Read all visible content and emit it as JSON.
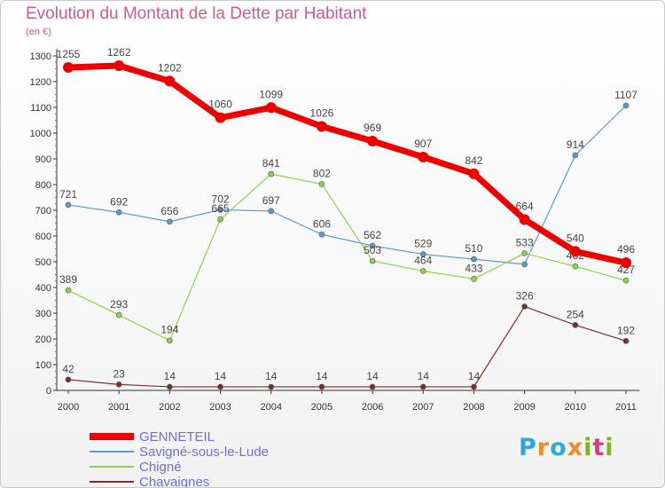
{
  "title": "Evolution du Montant de la Dette par Habitant",
  "unit": "(en €)",
  "logo": {
    "text": "Proxiti",
    "colors": [
      "#2aa8e0",
      "#f08a24",
      "#2aa8e0",
      "#f08a24",
      "#7ab81e",
      "#e03a7a",
      "#7ab81e"
    ]
  },
  "chart_data": {
    "type": "line",
    "title": "Evolution du Montant de la Dette par Habitant",
    "ylabel": "(en €)",
    "ylim": [
      0,
      1300
    ],
    "yticks": [
      0,
      100,
      200,
      300,
      400,
      500,
      600,
      700,
      800,
      900,
      1000,
      1100,
      1200,
      1300
    ],
    "categories": [
      "2000",
      "2001",
      "2002",
      "2003",
      "2004",
      "2005",
      "2006",
      "2007",
      "2008",
      "2009",
      "2010",
      "2011"
    ],
    "grid": false,
    "legend_position": "bottom-left",
    "series": [
      {
        "name": "Savigné-sous-le-Lude",
        "color": "#5b9bd5",
        "values": [
          721,
          692,
          656,
          702,
          697,
          606,
          562,
          529,
          510,
          490,
          914,
          1107
        ],
        "labels": [
          "721",
          "692",
          "656",
          "702",
          "697",
          "606",
          "562",
          "529",
          "510",
          "",
          "914",
          "1107"
        ]
      },
      {
        "name": "Chigné",
        "color": "#8fd14f",
        "values": [
          389,
          293,
          194,
          665,
          841,
          802,
          503,
          464,
          433,
          533,
          482,
          427
        ],
        "labels": [
          "389",
          "293",
          "194",
          "665",
          "841",
          "802",
          "503",
          "464",
          "433",
          "533",
          "482",
          "427"
        ]
      },
      {
        "name": "Chavaignes",
        "color": "#7b2e2e",
        "values": [
          42,
          23,
          14,
          14,
          14,
          14,
          14,
          14,
          14,
          326,
          254,
          192
        ],
        "labels": [
          "42",
          "23",
          "14",
          "14",
          "14",
          "14",
          "14",
          "14",
          "14",
          "326",
          "254",
          "192"
        ]
      },
      {
        "name": "GENNETEIL",
        "color": "#ee0000",
        "values": [
          1255,
          1262,
          1202,
          1060,
          1099,
          1026,
          969,
          907,
          842,
          664,
          540,
          496
        ],
        "labels": [
          "1255",
          "1262",
          "1202",
          "1060",
          "1099",
          "1026",
          "969",
          "907",
          "842",
          "664",
          "540",
          "496"
        ]
      }
    ]
  },
  "legend": [
    {
      "name": "GENNETEIL",
      "color": "#ee0000",
      "thick": true
    },
    {
      "name": "Savigné-sous-le-Lude",
      "color": "#5b9bd5",
      "thick": false
    },
    {
      "name": "Chigné",
      "color": "#8fd14f",
      "thick": false
    },
    {
      "name": "Chavaignes",
      "color": "#7b2e2e",
      "thick": false
    }
  ]
}
